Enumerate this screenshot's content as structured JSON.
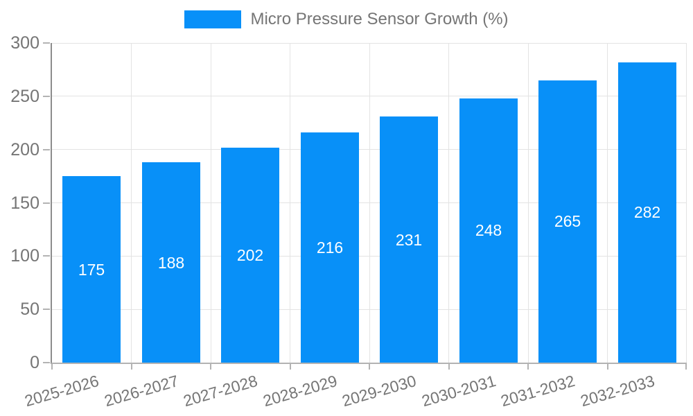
{
  "chart_data": {
    "type": "bar",
    "title": "Micro Pressure Sensor Growth (%)",
    "legend": {
      "label": "Micro Pressure Sensor Growth (%)",
      "position": "top"
    },
    "categories": [
      "2025-2026",
      "2026-2027",
      "2027-2028",
      "2028-2029",
      "2029-2030",
      "2030-2031",
      "2031-2032",
      "2032-2033"
    ],
    "values": [
      175,
      188,
      202,
      216,
      231,
      248,
      265,
      282
    ],
    "xlabel": "",
    "ylabel": "",
    "ylim": [
      0,
      300
    ],
    "yticks": [
      0,
      50,
      100,
      150,
      200,
      250,
      300
    ],
    "grid": true,
    "colors": {
      "bar": "#0890F8",
      "value_label": "#FFFFFF",
      "axis_text": "#757575",
      "grid_line": "#E3E3E3",
      "y_axis_line": "#8C8C8C",
      "x_axis_line": "#B3B3B3",
      "tick": "#B3B3B3",
      "background": "#FFFFFF"
    }
  }
}
